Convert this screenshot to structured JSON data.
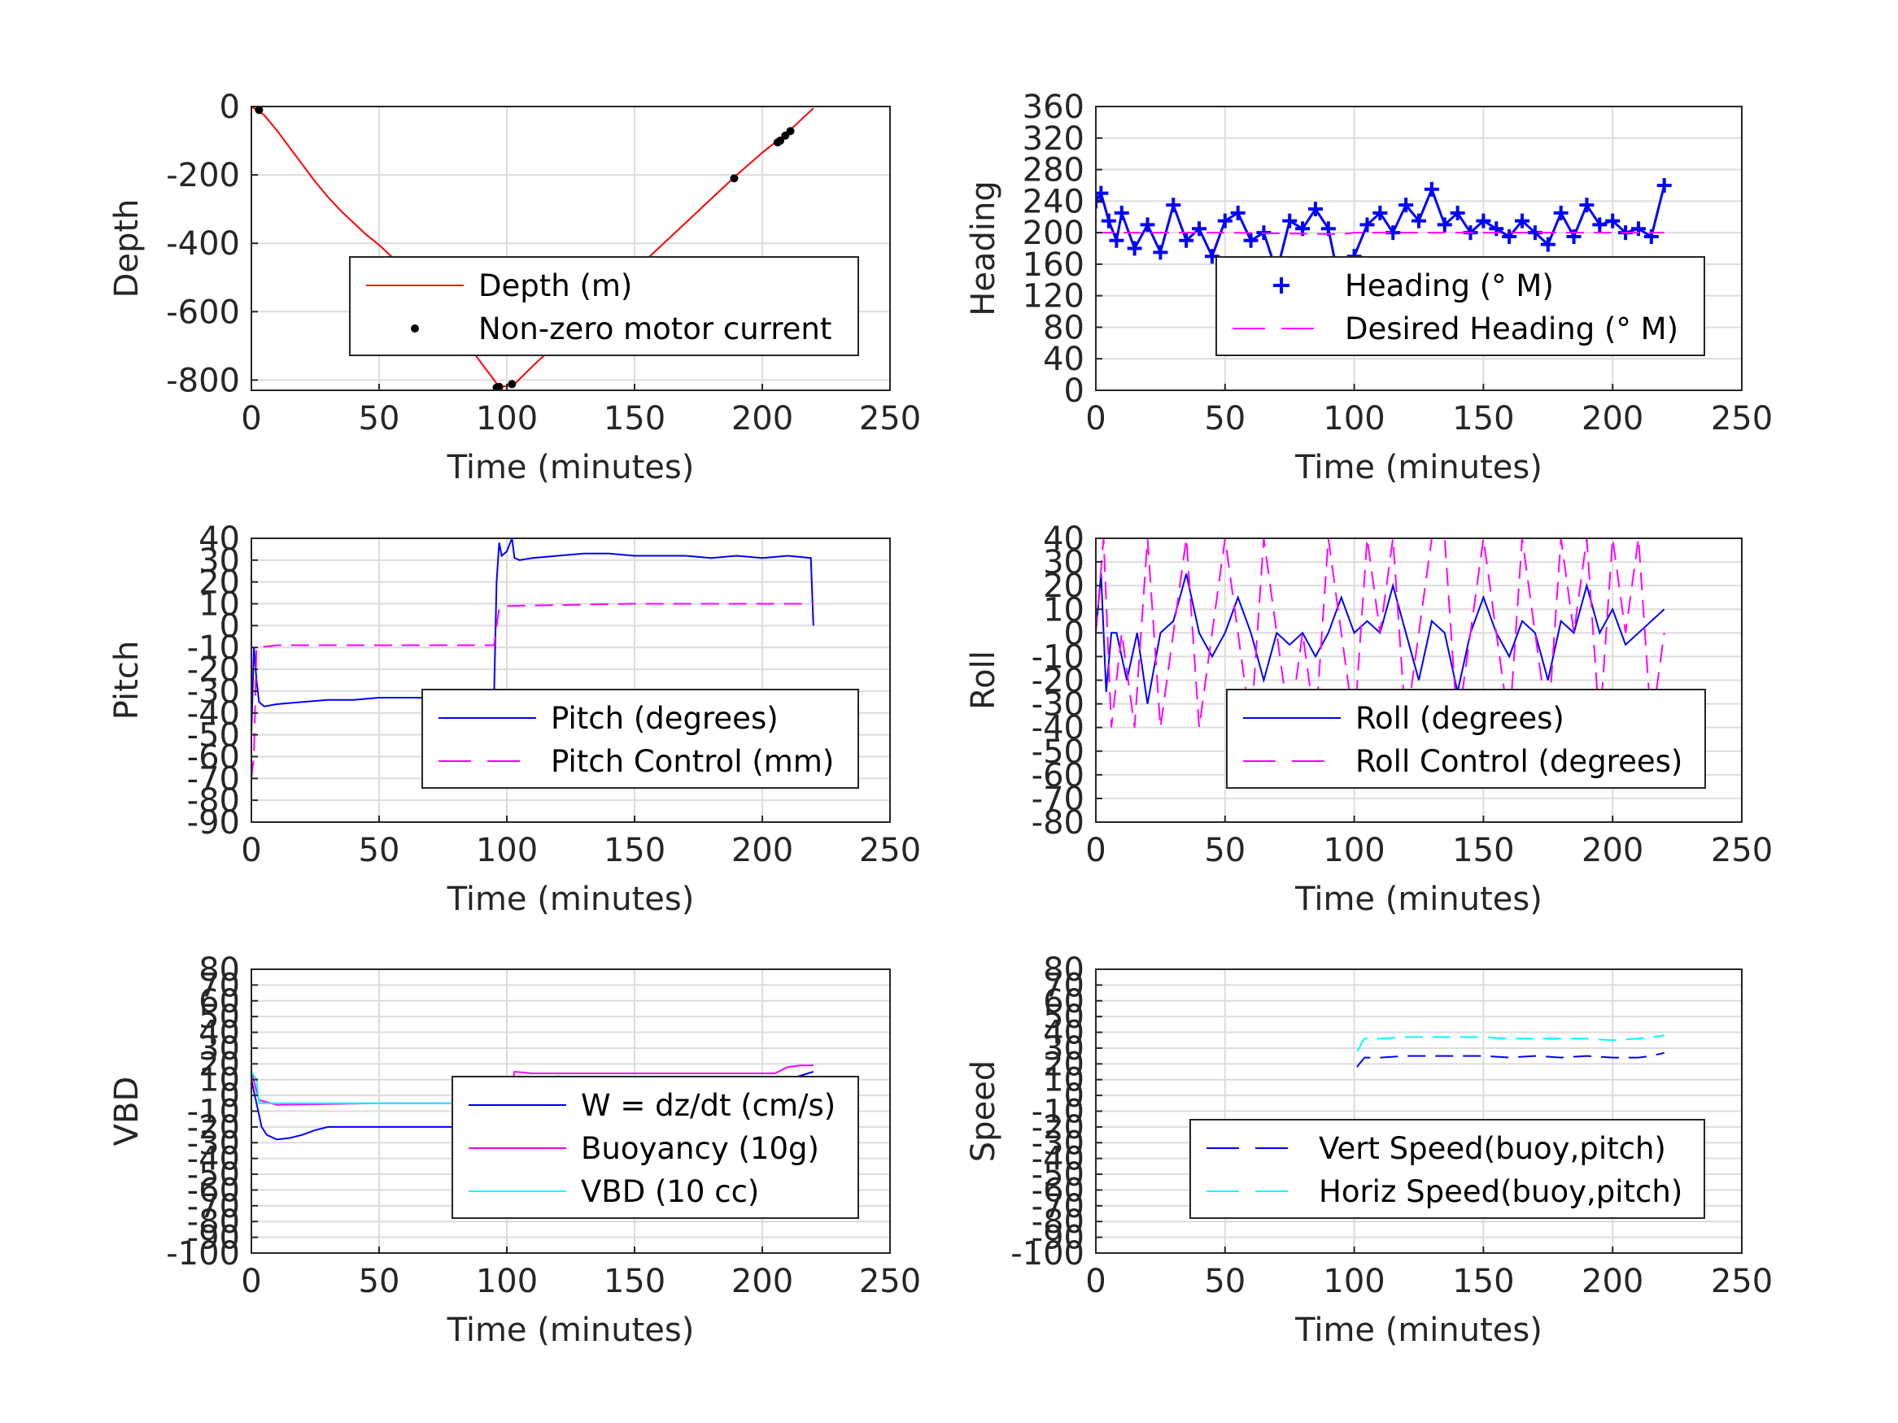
{
  "chart_data": [
    {
      "type": "line",
      "xlabel": "Time (minutes)",
      "ylabel": "Depth",
      "xlim": [
        0,
        250
      ],
      "ylim": [
        -830,
        0
      ],
      "xticks": [
        0,
        50,
        100,
        150,
        200,
        250
      ],
      "yticks": [
        -800,
        -600,
        -400,
        -200,
        0
      ],
      "grid": true,
      "legend_position": "center-right",
      "series": [
        {
          "name": "Depth (m)",
          "color": "#ff0000",
          "style": "solid",
          "x": [
            0,
            5,
            10,
            15,
            20,
            25,
            30,
            35,
            40,
            45,
            50,
            55,
            60,
            65,
            70,
            75,
            80,
            85,
            90,
            95,
            97,
            100,
            103,
            110,
            120,
            130,
            140,
            150,
            160,
            170,
            180,
            190,
            200,
            205,
            210,
            215,
            220
          ],
          "y": [
            0,
            -25,
            -70,
            -120,
            -170,
            -220,
            -265,
            -305,
            -340,
            -375,
            -405,
            -440,
            -480,
            -520,
            -560,
            -605,
            -650,
            -700,
            -750,
            -800,
            -820,
            -818,
            -812,
            -760,
            -690,
            -620,
            -550,
            -480,
            -410,
            -340,
            -270,
            -200,
            -135,
            -105,
            -75,
            -40,
            -5
          ]
        },
        {
          "name": "Non-zero motor current",
          "color": "#000000",
          "style": "dots",
          "x": [
            3,
            96,
            97,
            102,
            189,
            206,
            207,
            209,
            211
          ],
          "y": [
            -10,
            -822,
            -820,
            -812,
            -210,
            -105,
            -100,
            -85,
            -72
          ]
        }
      ]
    },
    {
      "type": "scatter",
      "xlabel": "Time (minutes)",
      "ylabel": "Heading",
      "xlim": [
        0,
        250
      ],
      "ylim": [
        0,
        360
      ],
      "xticks": [
        0,
        50,
        100,
        150,
        200,
        250
      ],
      "yticks": [
        0,
        40,
        80,
        120,
        160,
        200,
        240,
        280,
        320,
        360
      ],
      "grid": true,
      "legend_position": "lower-right",
      "series": [
        {
          "name": "Heading (° M)",
          "color": "#0000ff",
          "style": "plus-markers",
          "x": [
            0,
            2,
            5,
            8,
            10,
            15,
            20,
            25,
            30,
            35,
            40,
            45,
            50,
            55,
            60,
            65,
            70,
            75,
            80,
            85,
            90,
            95,
            100,
            105,
            110,
            115,
            120,
            125,
            130,
            135,
            140,
            145,
            150,
            155,
            160,
            165,
            170,
            175,
            180,
            185,
            190,
            195,
            200,
            205,
            210,
            215,
            220
          ],
          "y": [
            240,
            250,
            215,
            190,
            225,
            180,
            210,
            175,
            235,
            190,
            205,
            170,
            215,
            225,
            190,
            200,
            150,
            215,
            205,
            230,
            205,
            125,
            170,
            210,
            225,
            200,
            235,
            215,
            255,
            210,
            225,
            200,
            215,
            205,
            195,
            215,
            200,
            185,
            225,
            195,
            235,
            210,
            215,
            200,
            205,
            195,
            260
          ]
        },
        {
          "name": "Desired Heading (° M)",
          "color": "#ff00ff",
          "style": "dashed",
          "x": [
            0,
            50,
            95,
            100,
            150,
            220
          ],
          "y": [
            200,
            200,
            198,
            200,
            200,
            200
          ]
        }
      ]
    },
    {
      "type": "line",
      "xlabel": "Time (minutes)",
      "ylabel": "Pitch",
      "xlim": [
        0,
        250
      ],
      "ylim": [
        -90,
        40
      ],
      "xticks": [
        0,
        50,
        100,
        150,
        200,
        250
      ],
      "yticks": [
        -90,
        -80,
        -70,
        -60,
        -50,
        -40,
        -30,
        -20,
        -10,
        0,
        10,
        20,
        30,
        40
      ],
      "grid": true,
      "legend_position": "lower-right",
      "series": [
        {
          "name": "Pitch (degrees)",
          "color": "#0000ff",
          "style": "solid",
          "x": [
            0,
            1,
            2,
            3,
            5,
            10,
            20,
            30,
            40,
            50,
            60,
            70,
            80,
            90,
            95,
            96,
            97,
            98,
            100,
            102,
            103,
            105,
            110,
            120,
            130,
            140,
            150,
            160,
            170,
            180,
            190,
            200,
            210,
            219,
            220
          ],
          "y": [
            -50,
            -10,
            -25,
            -35,
            -37,
            -36,
            -35,
            -34,
            -34,
            -33,
            -33,
            -33,
            -33,
            -32,
            -32,
            20,
            38,
            32,
            34,
            40,
            31,
            30,
            31,
            32,
            33,
            33,
            32,
            32,
            32,
            31,
            32,
            31,
            32,
            31,
            0
          ]
        },
        {
          "name": "Pitch Control (mm)",
          "color": "#ff00ff",
          "style": "dashed",
          "x": [
            0,
            1,
            2,
            3,
            10,
            50,
            95,
            96,
            97,
            100,
            150,
            200,
            220
          ],
          "y": [
            -70,
            -60,
            -10,
            -10,
            -9,
            -9,
            -9,
            0,
            8,
            9,
            10,
            10,
            10
          ]
        }
      ]
    },
    {
      "type": "line",
      "xlabel": "Time (minutes)",
      "ylabel": "Roll",
      "xlim": [
        0,
        250
      ],
      "ylim": [
        -80,
        40
      ],
      "xticks": [
        0,
        50,
        100,
        150,
        200,
        250
      ],
      "yticks": [
        -80,
        -70,
        -60,
        -50,
        -40,
        -30,
        -20,
        -10,
        0,
        10,
        20,
        30,
        40
      ],
      "grid": true,
      "legend_position": "lower-right",
      "series": [
        {
          "name": "Roll (degrees)",
          "color": "#0000ff",
          "style": "solid",
          "x": [
            0,
            2,
            4,
            6,
            8,
            12,
            16,
            20,
            25,
            30,
            35,
            40,
            45,
            50,
            55,
            60,
            65,
            70,
            75,
            80,
            85,
            90,
            95,
            100,
            105,
            110,
            115,
            120,
            125,
            130,
            135,
            140,
            145,
            150,
            155,
            160,
            165,
            170,
            175,
            180,
            185,
            190,
            195,
            200,
            205,
            210,
            215,
            220
          ],
          "y": [
            0,
            25,
            -25,
            0,
            0,
            -20,
            0,
            -30,
            0,
            5,
            25,
            0,
            -10,
            0,
            15,
            0,
            -20,
            0,
            -5,
            0,
            -10,
            0,
            15,
            0,
            5,
            0,
            20,
            0,
            -20,
            5,
            0,
            -25,
            0,
            15,
            0,
            -10,
            5,
            0,
            -20,
            5,
            0,
            20,
            0,
            10,
            -5,
            0,
            5,
            10
          ]
        },
        {
          "name": "Roll Control (degrees)",
          "color": "#ff00ff",
          "style": "dashed",
          "x": [
            0,
            3,
            6,
            10,
            15,
            20,
            25,
            30,
            35,
            40,
            45,
            50,
            55,
            60,
            65,
            70,
            75,
            80,
            85,
            90,
            95,
            100,
            105,
            110,
            115,
            120,
            125,
            130,
            135,
            140,
            145,
            150,
            155,
            160,
            165,
            170,
            175,
            180,
            185,
            190,
            195,
            200,
            205,
            210,
            215,
            220
          ],
          "y": [
            0,
            40,
            -40,
            0,
            -40,
            40,
            -40,
            0,
            40,
            -40,
            0,
            40,
            0,
            -40,
            40,
            0,
            -40,
            0,
            -40,
            40,
            0,
            -40,
            40,
            0,
            40,
            -40,
            0,
            40,
            40,
            -40,
            0,
            40,
            0,
            -40,
            40,
            0,
            -40,
            40,
            0,
            40,
            -40,
            40,
            0,
            40,
            -40,
            0
          ]
        }
      ]
    },
    {
      "type": "line",
      "xlabel": "Time (minutes)",
      "ylabel": "VBD",
      "xlim": [
        0,
        250
      ],
      "ylim": [
        -100,
        80
      ],
      "xticks": [
        0,
        50,
        100,
        150,
        200,
        250
      ],
      "yticks": [
        -100,
        -90,
        -80,
        -70,
        -60,
        -50,
        -40,
        -30,
        -20,
        -10,
        0,
        10,
        20,
        30,
        40,
        50,
        60,
        70,
        80
      ],
      "ytick_labels": [
        "-100",
        "-90",
        "-80",
        "-70",
        "-60",
        "-50",
        "-40",
        "-30",
        "-20",
        "-10",
        "0",
        "10",
        "20",
        "30",
        "40",
        "50",
        "60",
        "70",
        "80"
      ],
      "grid": true,
      "legend_position": "lower-right",
      "series": [
        {
          "name": "W = dz/dt (cm/s)",
          "color": "#0000ff",
          "style": "solid",
          "x": [
            0,
            2,
            4,
            6,
            10,
            15,
            20,
            25,
            30,
            35,
            40,
            50,
            60,
            70,
            80,
            90,
            95,
            96,
            98,
            100,
            102,
            103,
            105,
            110,
            120,
            130,
            150,
            170,
            190,
            200,
            210,
            220
          ],
          "y": [
            10,
            -5,
            -20,
            -25,
            -28,
            -27,
            -25,
            -22,
            -20,
            -20,
            -20,
            -20,
            -20,
            -20,
            -20,
            -20,
            -20,
            -12,
            0,
            -1,
            0,
            5,
            12,
            11,
            12,
            11,
            11,
            11,
            10,
            10,
            10,
            15
          ]
        },
        {
          "name": "Buoyancy (10g)",
          "color": "#ff00ff",
          "style": "solid",
          "x": [
            0,
            3,
            10,
            50,
            95,
            100,
            102,
            103,
            110,
            150,
            200,
            205,
            210,
            215,
            220
          ],
          "y": [
            15,
            -3,
            -6,
            -5,
            -5,
            -3,
            5,
            15,
            14,
            14,
            14,
            14,
            18,
            19,
            19
          ]
        },
        {
          "name": "VBD (10 cc)",
          "color": "#00ffff",
          "style": "solid",
          "x": [
            0,
            2,
            3,
            10,
            50,
            95,
            96,
            97,
            100,
            150,
            200,
            220
          ],
          "y": [
            15,
            10,
            -5,
            -5,
            -5,
            -5,
            2,
            8,
            8,
            8,
            8,
            8
          ]
        }
      ]
    },
    {
      "type": "line",
      "xlabel": "Time (minutes)",
      "ylabel": "Speed",
      "xlim": [
        0,
        250
      ],
      "ylim": [
        -100,
        80
      ],
      "xticks": [
        0,
        50,
        100,
        150,
        200,
        250
      ],
      "yticks": [
        -100,
        -90,
        -80,
        -70,
        -60,
        -50,
        -40,
        -30,
        -20,
        -10,
        0,
        10,
        20,
        30,
        40,
        50,
        60,
        70,
        80
      ],
      "ytick_labels": [
        "-100",
        "-90",
        "-80",
        "-70",
        "-60",
        "-50",
        "-40",
        "-30",
        "-20",
        "-10",
        "0",
        "10",
        "20",
        "30",
        "40",
        "50",
        "60",
        "70",
        "80"
      ],
      "grid": true,
      "legend_position": "lower-right",
      "series": [
        {
          "name": "Vert Speed(buoy,pitch)",
          "color": "#0000ff",
          "style": "dashed",
          "x": [
            101,
            102,
            103,
            104,
            110,
            120,
            130,
            140,
            150,
            160,
            170,
            180,
            190,
            200,
            210,
            215,
            220
          ],
          "y": [
            18,
            20,
            22,
            24,
            24,
            25,
            25,
            25,
            25,
            24,
            25,
            24,
            25,
            24,
            24,
            25,
            27
          ]
        },
        {
          "name": "Horiz Speed(buoy,pitch)",
          "color": "#00ffff",
          "style": "dashed",
          "x": [
            101,
            102,
            103,
            104,
            110,
            120,
            130,
            140,
            150,
            160,
            170,
            180,
            190,
            200,
            210,
            215,
            220
          ],
          "y": [
            28,
            30,
            34,
            36,
            36,
            37,
            37,
            37,
            37,
            36,
            36,
            36,
            36,
            35,
            36,
            37,
            38
          ]
        }
      ]
    }
  ]
}
